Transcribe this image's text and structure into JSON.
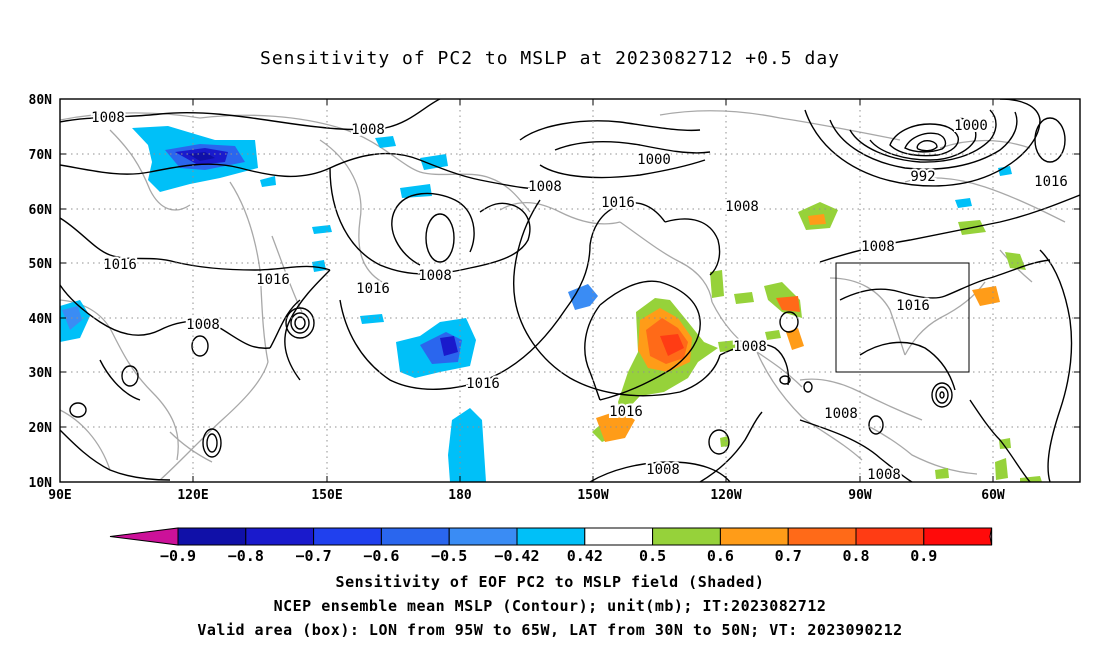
{
  "title": "Sensitivity of PC2 to MSLP at 2023082712 +0.5 day",
  "lat_labels": [
    "80N",
    "70N",
    "60N",
    "50N",
    "40N",
    "30N",
    "20N",
    "10N"
  ],
  "lon_labels": [
    "90E",
    "120E",
    "150E",
    "180",
    "150W",
    "120W",
    "90W",
    "60W"
  ],
  "contour_labels": [
    "1008",
    "1008",
    "1016",
    "1016",
    "1008",
    "1008",
    "1016",
    "1008",
    "1016",
    "1016",
    "1016",
    "1008",
    "1000",
    "1008",
    "1016",
    "1008",
    "1008",
    "1000",
    "992",
    "1016",
    "1008",
    "1016",
    "1008",
    "1008"
  ],
  "colorbar": {
    "colors": [
      "#cc1199",
      "#1010a8",
      "#1a1acc",
      "#2040ee",
      "#2a66ee",
      "#3a8cf4",
      "#00c0f8",
      "#ffffff",
      "#96d23a",
      "#ff9c18",
      "#ff6a18",
      "#ff3c14",
      "#ff0a0a",
      "#f8a0c4"
    ],
    "labels": [
      "−0.9",
      "−0.8",
      "−0.7",
      "−0.6",
      "−0.5",
      "−0.42",
      "0.42",
      "0.5",
      "0.6",
      "0.7",
      "0.8",
      "0.9"
    ]
  },
  "caption": {
    "line1": "Sensitivity of EOF PC2 to MSLP field (Shaded)",
    "line2": "NCEP ensemble mean MSLP (Contour); unit(mb); IT:2023082712",
    "line3": "Valid area (box): LON from 95W to 65W, LAT from 30N to 50N; VT: 2023090212"
  },
  "valid_box": {
    "lon_west": "95W",
    "lon_east": "65W",
    "lat_south": "30N",
    "lat_north": "50N"
  }
}
